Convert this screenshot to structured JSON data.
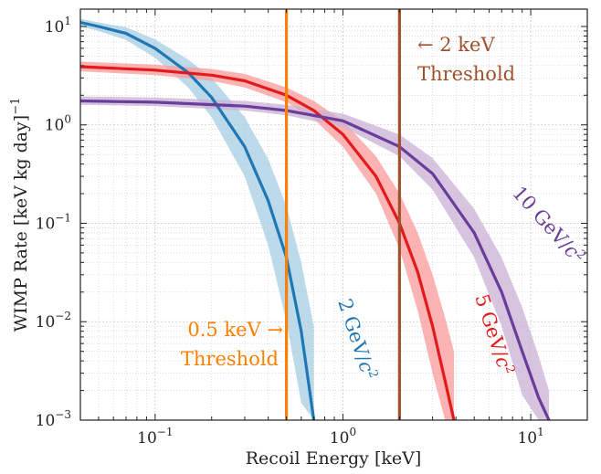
{
  "chart_data": {
    "type": "line",
    "title": "",
    "xlabel": "Recoil Energy [keV]",
    "ylabel": "WIMP Rate [keV kg day]",
    "ylabel_exponent": "−1",
    "xscale": "log",
    "yscale": "log",
    "xlim": [
      0.04,
      20
    ],
    "ylim": [
      0.001,
      15
    ],
    "grid": true,
    "x_ticks": [
      {
        "base": "10",
        "exp": "−1",
        "value": 0.1
      },
      {
        "base": "10",
        "exp": "0",
        "value": 1
      },
      {
        "base": "10",
        "exp": "1",
        "value": 10
      }
    ],
    "y_ticks": [
      {
        "base": "10",
        "exp": "−3",
        "value": 0.001
      },
      {
        "base": "10",
        "exp": "−2",
        "value": 0.01
      },
      {
        "base": "10",
        "exp": "−1",
        "value": 0.1
      },
      {
        "base": "10",
        "exp": "0",
        "value": 1
      },
      {
        "base": "10",
        "exp": "1",
        "value": 10
      }
    ],
    "series": [
      {
        "name": "2 GeV/c²",
        "label_main": "2 GeV/",
        "label_c": "c",
        "label_sup": "2",
        "color": "#1f77b4",
        "band_color": "#a6cee3",
        "x": [
          0.04,
          0.05,
          0.07,
          0.1,
          0.15,
          0.2,
          0.3,
          0.4,
          0.5,
          0.6,
          0.7
        ],
        "y": [
          11,
          10,
          8.5,
          6.0,
          3.4,
          1.9,
          0.6,
          0.17,
          0.045,
          0.008,
          0.001
        ],
        "band_lower": [
          10,
          9.0,
          7.3,
          4.8,
          2.4,
          1.2,
          0.3,
          0.06,
          0.01,
          0.0015,
          0.001
        ],
        "band_upper": [
          12,
          11,
          9.8,
          7.4,
          4.6,
          3.0,
          1.2,
          0.45,
          0.15,
          0.04,
          0.009
        ]
      },
      {
        "name": "5 GeV/c²",
        "label_main": "5 GeV/",
        "label_c": "c",
        "label_sup": "2",
        "color": "#e31a1c",
        "band_color": "#fb9a99",
        "x": [
          0.04,
          0.1,
          0.2,
          0.3,
          0.5,
          0.7,
          1.0,
          1.5,
          2.0,
          2.5,
          3.0,
          3.5,
          3.9
        ],
        "y": [
          3.9,
          3.6,
          3.2,
          2.8,
          2.0,
          1.4,
          0.8,
          0.3,
          0.1,
          0.032,
          0.009,
          0.0025,
          0.001
        ],
        "band_lower": [
          3.5,
          3.2,
          2.8,
          2.4,
          1.7,
          1.15,
          0.6,
          0.2,
          0.055,
          0.013,
          0.003,
          0.001,
          0.001
        ],
        "band_upper": [
          4.4,
          4.1,
          3.7,
          3.3,
          2.4,
          1.75,
          1.1,
          0.48,
          0.2,
          0.08,
          0.03,
          0.011,
          0.005
        ]
      },
      {
        "name": "10 GeV/c²",
        "label_main": "10 GeV/",
        "label_c": "c",
        "label_sup": "2",
        "color": "#6a3d9a",
        "band_color": "#cab2d6",
        "x": [
          0.04,
          0.1,
          0.3,
          0.5,
          1.0,
          2.0,
          3.0,
          5.0,
          7.0,
          9.0,
          11.0,
          12.5
        ],
        "y": [
          1.75,
          1.7,
          1.55,
          1.4,
          1.1,
          0.6,
          0.32,
          0.08,
          0.02,
          0.005,
          0.0017,
          0.001
        ],
        "band_lower": [
          1.6,
          1.55,
          1.4,
          1.25,
          0.95,
          0.48,
          0.22,
          0.045,
          0.009,
          0.0018,
          0.001,
          0.001
        ],
        "band_upper": [
          1.95,
          1.9,
          1.75,
          1.6,
          1.3,
          0.8,
          0.46,
          0.14,
          0.045,
          0.014,
          0.0045,
          0.002
        ]
      }
    ],
    "thresholds": [
      {
        "x": 0.5,
        "color": "#ff7f00",
        "line1": "0.5 keV →",
        "line2": "Threshold"
      },
      {
        "x": 2.0,
        "color": "#a0522d",
        "line1": "← 2 keV",
        "line2": "Threshold"
      }
    ]
  }
}
